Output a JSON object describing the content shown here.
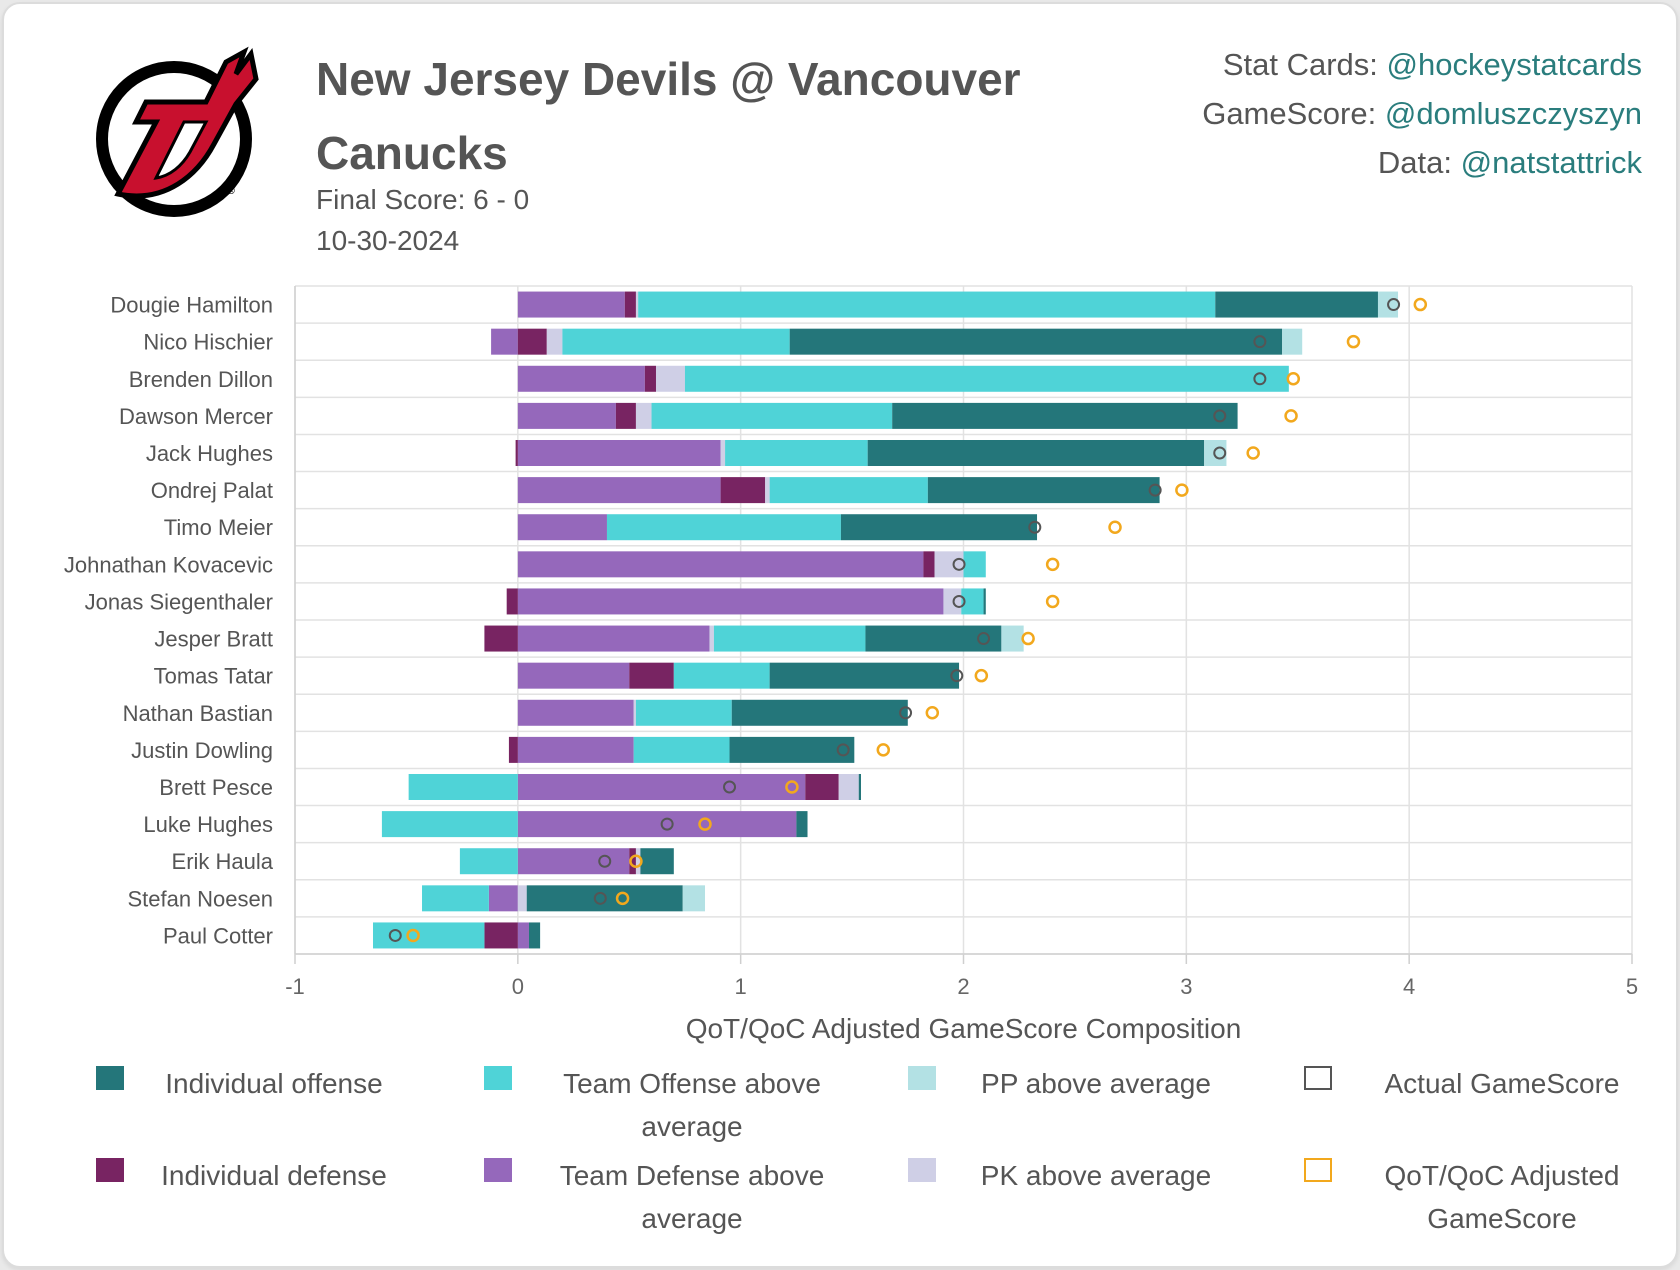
{
  "header": {
    "title": "New Jersey Devils @ Vancouver Canucks",
    "final_score": "Final Score: 6 - 0",
    "date": "10-30-2024"
  },
  "credits": [
    {
      "label": "Stat Cards:",
      "handle": "@hockeystatcards"
    },
    {
      "label": "GameScore:",
      "handle": "@domluszczyszyn"
    },
    {
      "label": "Data:",
      "handle": "@natstattrick"
    }
  ],
  "logo": {
    "name": "new-jersey-devils-logo",
    "color": "#c8102e"
  },
  "colors": {
    "individual_offense": "#24767a",
    "team_offense": "#4fd3d7",
    "pp": "#b3e1e4",
    "individual_defense": "#782462",
    "team_defense": "#9568bb",
    "pk": "#cfcfe6",
    "actual_marker": "#555555",
    "adjusted_marker": "#f2a81d"
  },
  "legend": [
    {
      "key": "individual_offense",
      "label": "Individual offense",
      "type": "fill"
    },
    {
      "key": "team_offense",
      "label": "Team Offense above average",
      "type": "fill"
    },
    {
      "key": "pp",
      "label": "PP above average",
      "type": "fill"
    },
    {
      "key": "actual",
      "label": "Actual GameScore",
      "type": "marker"
    },
    {
      "key": "individual_defense",
      "label": "Individual defense",
      "type": "fill"
    },
    {
      "key": "team_defense",
      "label": "Team Defense above average",
      "type": "fill"
    },
    {
      "key": "pk",
      "label": "PK above average",
      "type": "fill"
    },
    {
      "key": "adjusted",
      "label": "QoT/QoC Adjusted GameScore",
      "type": "marker"
    }
  ],
  "chart_data": {
    "type": "bar",
    "orientation": "horizontal",
    "stacked": true,
    "xlabel": "QoT/QoC Adjusted GameScore Composition",
    "xlim": [
      -1,
      5
    ],
    "xticks": [
      -1,
      0,
      1,
      2,
      3,
      4,
      5
    ],
    "grid": true,
    "legend_position": "bottom",
    "players": [
      {
        "name": "Dougie Hamilton",
        "team_defense": 0.48,
        "individual_defense": 0.05,
        "pk": 0.01,
        "team_offense": 2.59,
        "individual_offense": 0.73,
        "pp": 0.09,
        "actual": 3.93,
        "adjusted": 4.05
      },
      {
        "name": "Nico Hischier",
        "team_defense": -0.12,
        "individual_defense": 0.13,
        "pk": 0.07,
        "team_offense": 1.02,
        "individual_offense": 2.21,
        "pp": 0.09,
        "actual": 3.33,
        "adjusted": 3.75
      },
      {
        "name": "Brenden Dillon",
        "team_defense": 0.57,
        "individual_defense": 0.05,
        "pk": 0.13,
        "team_offense": 2.71,
        "individual_offense": 0.0,
        "pp": 0.0,
        "actual": 3.33,
        "adjusted": 3.48
      },
      {
        "name": "Dawson Mercer",
        "team_defense": 0.44,
        "individual_defense": 0.09,
        "pk": 0.07,
        "team_offense": 1.08,
        "individual_offense": 1.55,
        "pp": 0.0,
        "actual": 3.15,
        "adjusted": 3.47
      },
      {
        "name": "Jack Hughes",
        "team_defense": 0.91,
        "individual_defense": -0.01,
        "pk": 0.02,
        "team_offense": 0.64,
        "individual_offense": 1.51,
        "pp": 0.1,
        "actual": 3.15,
        "adjusted": 3.3
      },
      {
        "name": "Ondrej Palat",
        "team_defense": 0.91,
        "individual_defense": 0.2,
        "pk": 0.02,
        "team_offense": 0.71,
        "individual_offense": 1.04,
        "pp": 0.0,
        "actual": 2.86,
        "adjusted": 2.98
      },
      {
        "name": "Timo Meier",
        "team_defense": 0.4,
        "individual_defense": 0.0,
        "pk": 0.0,
        "team_offense": 1.05,
        "individual_offense": 0.88,
        "pp": 0.0,
        "actual": 2.32,
        "adjusted": 2.68
      },
      {
        "name": "Johnathan Kovacevic",
        "team_defense": 1.82,
        "individual_defense": 0.05,
        "pk": 0.13,
        "team_offense": 0.1,
        "individual_offense": 0.0,
        "pp": 0.0,
        "actual": 1.98,
        "adjusted": 2.4
      },
      {
        "name": "Jonas Siegenthaler",
        "team_defense": 1.91,
        "individual_defense": -0.05,
        "pk": 0.08,
        "team_offense": 0.1,
        "individual_offense": 0.01,
        "pp": 0.0,
        "actual": 1.98,
        "adjusted": 2.4
      },
      {
        "name": "Jesper Bratt",
        "team_defense": 0.86,
        "individual_defense": -0.15,
        "pk": 0.02,
        "team_offense": 0.68,
        "individual_offense": 0.61,
        "pp": 0.1,
        "actual": 2.09,
        "adjusted": 2.29
      },
      {
        "name": "Tomas Tatar",
        "team_defense": 0.5,
        "individual_defense": 0.2,
        "pk": 0.0,
        "team_offense": 0.43,
        "individual_offense": 0.85,
        "pp": 0.0,
        "actual": 1.97,
        "adjusted": 2.08
      },
      {
        "name": "Nathan Bastian",
        "team_defense": 0.52,
        "individual_defense": 0.0,
        "pk": 0.01,
        "team_offense": 0.43,
        "individual_offense": 0.79,
        "pp": 0.0,
        "actual": 1.74,
        "adjusted": 1.86
      },
      {
        "name": "Justin Dowling",
        "team_defense": 0.52,
        "individual_defense": -0.04,
        "pk": 0.0,
        "team_offense": 0.43,
        "individual_offense": 0.56,
        "pp": 0.0,
        "actual": 1.46,
        "adjusted": 1.64
      },
      {
        "name": "Brett Pesce",
        "team_defense": 1.29,
        "individual_defense": 0.15,
        "pk": 0.09,
        "team_offense": -0.49,
        "individual_offense": 0.01,
        "pp": 0.0,
        "actual": 0.95,
        "adjusted": 1.23
      },
      {
        "name": "Luke Hughes",
        "team_defense": 1.25,
        "individual_defense": 0.0,
        "pk": 0.0,
        "team_offense": -0.61,
        "individual_offense": 0.05,
        "pp": 0.0,
        "actual": 0.67,
        "adjusted": 0.84
      },
      {
        "name": "Erik Haula",
        "team_defense": 0.5,
        "individual_defense": 0.03,
        "pk": 0.02,
        "team_offense": -0.26,
        "individual_offense": 0.15,
        "pp": 0.0,
        "actual": 0.39,
        "adjusted": 0.53
      },
      {
        "name": "Stefan Noesen",
        "team_defense": -0.13,
        "individual_defense": 0.0,
        "pk": 0.04,
        "team_offense": -0.3,
        "individual_offense": 0.7,
        "pp": 0.1,
        "actual": 0.37,
        "adjusted": 0.47
      },
      {
        "name": "Paul Cotter",
        "team_defense": 0.05,
        "individual_defense": -0.15,
        "pk": 0.0,
        "team_offense": -0.5,
        "individual_offense": 0.05,
        "pp": 0.0,
        "actual": -0.55,
        "adjusted": -0.47
      }
    ]
  }
}
